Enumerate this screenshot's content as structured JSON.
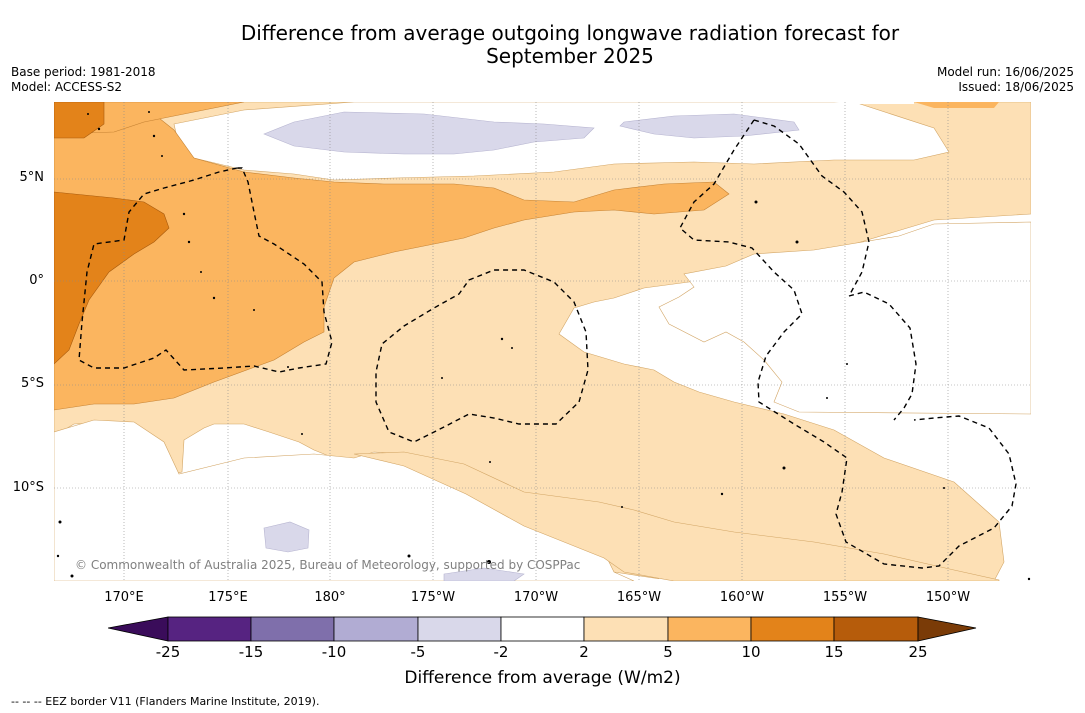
{
  "title_line1": "Difference from average outgoing longwave radiation forecast for",
  "title_line2": "September 2025",
  "left_meta": {
    "base_period": "Base period: 1981-2018",
    "model": "Model: ACCESS-S2"
  },
  "right_meta": {
    "model_run": "Model run: 16/06/2025",
    "issued": "Issued: 18/06/2025"
  },
  "lat_labels": [
    "5°N",
    "0°",
    "5°S",
    "10°S"
  ],
  "lon_labels": [
    "170°E",
    "175°E",
    "180°",
    "175°W",
    "170°W",
    "165°W",
    "160°W",
    "155°W",
    "150°W"
  ],
  "copyright": "© Commonwealth of Australia 2025, Bureau of Meteorology, supported by COSPPac",
  "colorbar": {
    "labels": [
      "-25",
      "-15",
      "-10",
      "-5",
      "-2",
      "2",
      "5",
      "10",
      "15",
      "25"
    ],
    "colors": [
      "#3a0c5a",
      "#562381",
      "#7f6fab",
      "#b1acd3",
      "#d9d8ea",
      "#ffffff",
      "#fde0b5",
      "#fbb55f",
      "#e3831a",
      "#b65c0b",
      "#7a3b07"
    ],
    "title": "Difference from average (W/m2)"
  },
  "footnote": "--  --  -- EEZ border V11 (Flanders Marine Institute, 2019)."
}
